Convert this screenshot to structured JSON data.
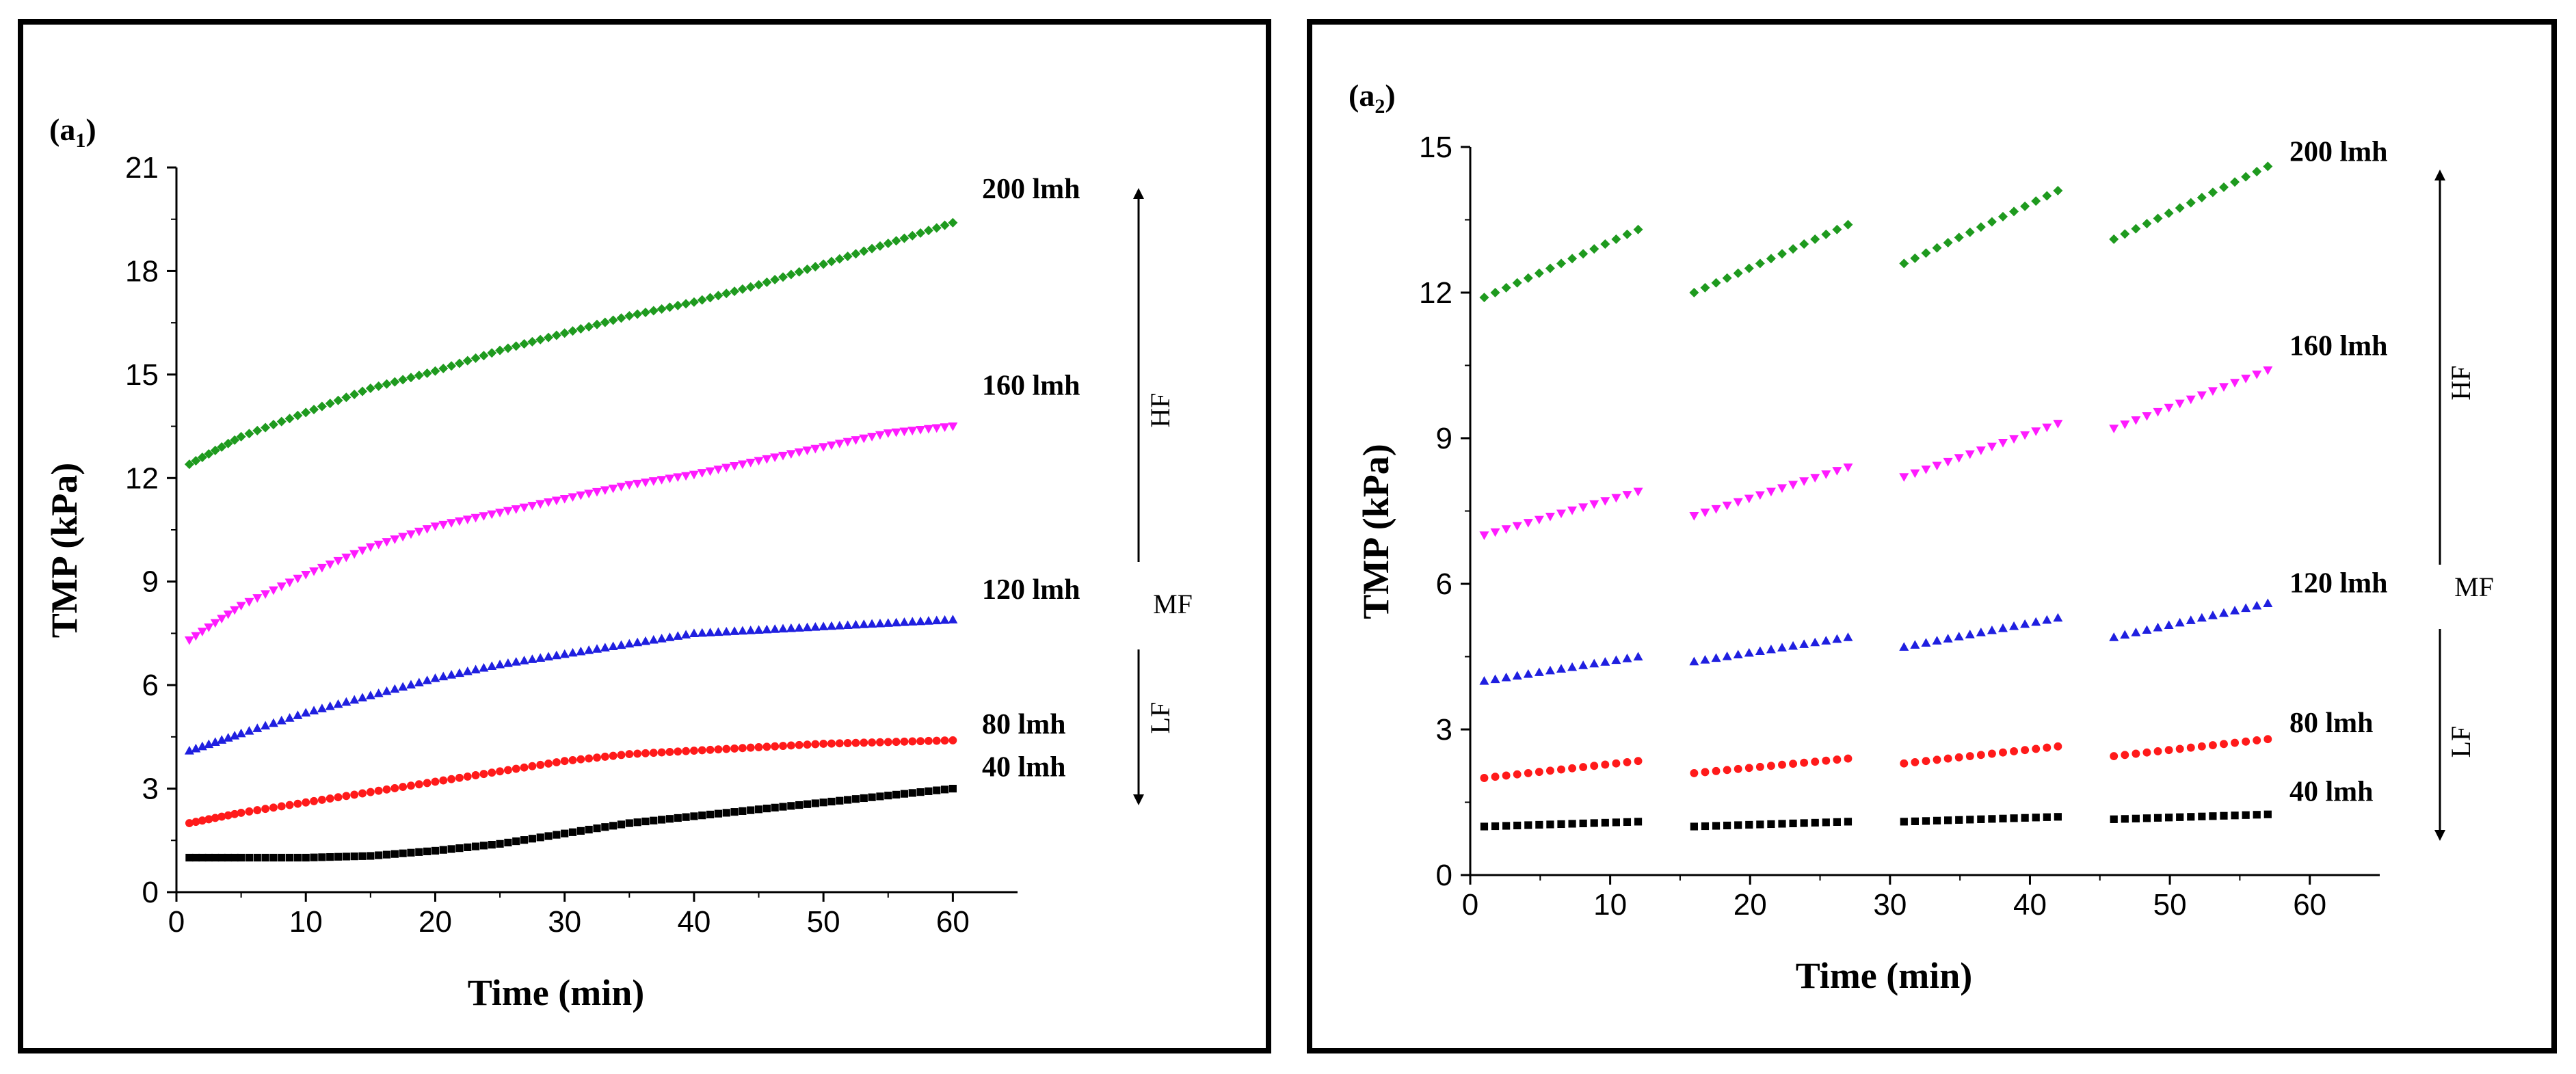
{
  "chart_data": [
    {
      "id": "a1",
      "type": "scatter",
      "panel_label": "(a",
      "panel_label_sub": "1",
      "panel_label_close": ")",
      "xlabel": "Time (min)",
      "ylabel": "TMP (kPa)",
      "xlim": [
        0,
        65
      ],
      "ylim": [
        0,
        21
      ],
      "xticks": [
        "0",
        "10",
        "20",
        "30",
        "40",
        "50",
        "60"
      ],
      "xtick_values": [
        0,
        10,
        20,
        30,
        40,
        50,
        60
      ],
      "yticks": [
        "0",
        "3",
        "6",
        "9",
        "12",
        "15",
        "18",
        "21"
      ],
      "ytick_values": [
        0,
        3,
        6,
        9,
        12,
        15,
        18,
        21
      ],
      "annotations": {
        "hf": "HF",
        "mf": "MF",
        "lf": "LF"
      },
      "series": [
        {
          "name": "200 lmh",
          "color": "#1e9a1e",
          "marker": "diamond",
          "x": [
            1,
            5,
            10,
            15,
            20,
            25,
            30,
            35,
            40,
            45,
            50,
            55,
            60
          ],
          "y": [
            12.4,
            13.2,
            13.9,
            14.6,
            15.1,
            15.7,
            16.2,
            16.7,
            17.1,
            17.6,
            18.2,
            18.8,
            19.4
          ]
        },
        {
          "name": "160 lmh",
          "color": "#ff1aff",
          "marker": "triangle-down",
          "x": [
            1,
            5,
            10,
            15,
            20,
            25,
            30,
            35,
            40,
            45,
            50,
            55,
            60
          ],
          "y": [
            7.3,
            8.3,
            9.2,
            10.0,
            10.6,
            11.0,
            11.4,
            11.8,
            12.1,
            12.5,
            12.9,
            13.3,
            13.5
          ]
        },
        {
          "name": "120 lmh",
          "color": "#1f1fe0",
          "marker": "triangle-up",
          "x": [
            1,
            5,
            10,
            15,
            20,
            25,
            30,
            35,
            40,
            45,
            50,
            55,
            60
          ],
          "y": [
            4.1,
            4.6,
            5.2,
            5.7,
            6.2,
            6.6,
            6.9,
            7.2,
            7.5,
            7.6,
            7.7,
            7.8,
            7.9
          ]
        },
        {
          "name": "80 lmh",
          "color": "#ff1a1a",
          "marker": "circle",
          "x": [
            1,
            5,
            10,
            15,
            20,
            25,
            30,
            35,
            40,
            45,
            50,
            55,
            60
          ],
          "y": [
            2.0,
            2.3,
            2.6,
            2.9,
            3.2,
            3.5,
            3.8,
            4.0,
            4.1,
            4.2,
            4.3,
            4.35,
            4.4
          ]
        },
        {
          "name": "40 lmh",
          "color": "#000000",
          "marker": "square",
          "x": [
            1,
            5,
            10,
            15,
            20,
            25,
            30,
            35,
            40,
            45,
            50,
            55,
            60
          ],
          "y": [
            1.0,
            1.0,
            1.0,
            1.05,
            1.2,
            1.4,
            1.7,
            2.0,
            2.2,
            2.4,
            2.6,
            2.8,
            3.0
          ]
        }
      ]
    },
    {
      "id": "a2",
      "type": "scatter",
      "panel_label": "(a",
      "panel_label_sub": "2",
      "panel_label_close": ")",
      "xlabel": "Time (min)",
      "ylabel": "TMP (kPa)",
      "xlim": [
        0,
        65
      ],
      "ylim": [
        0,
        15
      ],
      "xticks": [
        "0",
        "10",
        "20",
        "30",
        "40",
        "50",
        "60"
      ],
      "xtick_values": [
        0,
        10,
        20,
        30,
        40,
        50,
        60
      ],
      "yticks": [
        "0",
        "3",
        "6",
        "9",
        "12",
        "15"
      ],
      "ytick_values": [
        0,
        3,
        6,
        9,
        12,
        15
      ],
      "annotations": {
        "hf": "HF",
        "mf": "MF",
        "lf": "LF"
      },
      "segments": [
        [
          1,
          12
        ],
        [
          16,
          27
        ],
        [
          31,
          42
        ],
        [
          46,
          57
        ]
      ],
      "series": [
        {
          "name": "200 lmh",
          "color": "#1e9a1e",
          "marker": "diamond",
          "segment_ranges": [
            [
              11.9,
              13.3
            ],
            [
              12.0,
              13.4
            ],
            [
              12.6,
              14.1
            ],
            [
              13.1,
              14.6
            ]
          ]
        },
        {
          "name": "160 lmh",
          "color": "#ff1aff",
          "marker": "triangle-down",
          "segment_ranges": [
            [
              7.0,
              7.9
            ],
            [
              7.4,
              8.4
            ],
            [
              8.2,
              9.3
            ],
            [
              9.2,
              10.4
            ]
          ]
        },
        {
          "name": "120 lmh",
          "color": "#1f1fe0",
          "marker": "triangle-up",
          "segment_ranges": [
            [
              4.0,
              4.5
            ],
            [
              4.4,
              4.9
            ],
            [
              4.7,
              5.3
            ],
            [
              4.9,
              5.6
            ]
          ]
        },
        {
          "name": "80 lmh",
          "color": "#ff1a1a",
          "marker": "circle",
          "segment_ranges": [
            [
              2.0,
              2.35
            ],
            [
              2.1,
              2.4
            ],
            [
              2.3,
              2.65
            ],
            [
              2.45,
              2.8
            ]
          ]
        },
        {
          "name": "40 lmh",
          "color": "#000000",
          "marker": "square",
          "segment_ranges": [
            [
              1.0,
              1.1
            ],
            [
              1.0,
              1.1
            ],
            [
              1.1,
              1.2
            ],
            [
              1.15,
              1.25
            ]
          ]
        }
      ]
    }
  ]
}
